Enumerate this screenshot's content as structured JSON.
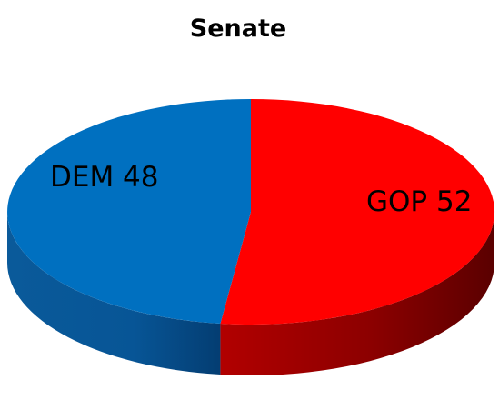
{
  "chart_data": {
    "type": "pie",
    "title": "Senate",
    "categories": [
      "GOP",
      "DEM"
    ],
    "values": [
      52,
      48
    ],
    "labels": [
      "GOP 52",
      "DEM 48"
    ],
    "colors": [
      "#ff0000",
      "#0070c0"
    ],
    "style": "3d"
  }
}
